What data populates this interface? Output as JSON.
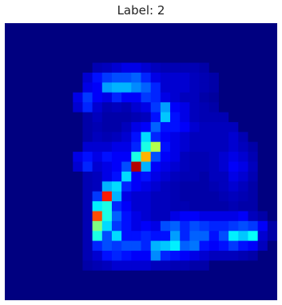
{
  "chart_data": {
    "type": "heatmap",
    "title": "Label: 2",
    "colormap": "jet",
    "value_range": [
      0,
      1
    ],
    "grid": false,
    "axes_visible": false,
    "rows": [
      [
        0.0,
        0.0,
        0.0,
        0.0,
        0.0,
        0.0,
        0.0,
        0.0,
        0.0,
        0.0,
        0.0,
        0.0,
        0.0,
        0.0,
        0.0,
        0.0,
        0.0,
        0.0,
        0.0,
        0.0,
        0.0,
        0.0,
        0.0,
        0.0,
        0.0,
        0.0,
        0.0,
        0.0
      ],
      [
        0.0,
        0.0,
        0.0,
        0.0,
        0.0,
        0.0,
        0.0,
        0.0,
        0.0,
        0.0,
        0.0,
        0.0,
        0.0,
        0.0,
        0.0,
        0.0,
        0.0,
        0.0,
        0.0,
        0.0,
        0.0,
        0.0,
        0.0,
        0.0,
        0.0,
        0.0,
        0.0,
        0.0
      ],
      [
        0.0,
        0.0,
        0.0,
        0.0,
        0.0,
        0.0,
        0.0,
        0.0,
        0.0,
        0.0,
        0.0,
        0.0,
        0.0,
        0.0,
        0.0,
        0.0,
        0.0,
        0.0,
        0.0,
        0.0,
        0.0,
        0.0,
        0.0,
        0.0,
        0.0,
        0.0,
        0.0,
        0.0
      ],
      [
        0.0,
        0.0,
        0.0,
        0.0,
        0.0,
        0.0,
        0.0,
        0.0,
        0.0,
        0.0,
        0.0,
        0.0,
        0.0,
        0.0,
        0.0,
        0.0,
        0.0,
        0.0,
        0.0,
        0.0,
        0.0,
        0.0,
        0.0,
        0.0,
        0.0,
        0.0,
        0.0,
        0.0
      ],
      [
        0.0,
        0.0,
        0.0,
        0.0,
        0.0,
        0.0,
        0.0,
        0.0,
        0.0,
        0.05,
        0.06,
        0.08,
        0.1,
        0.1,
        0.08,
        0.06,
        0.05,
        0.05,
        0.05,
        0.05,
        0.04,
        0.0,
        0.0,
        0.0,
        0.0,
        0.0,
        0.0,
        0.0
      ],
      [
        0.0,
        0.0,
        0.0,
        0.0,
        0.0,
        0.0,
        0.0,
        0.0,
        0.08,
        0.14,
        0.18,
        0.2,
        0.2,
        0.22,
        0.16,
        0.1,
        0.08,
        0.08,
        0.08,
        0.06,
        0.05,
        0.04,
        0.0,
        0.0,
        0.0,
        0.0,
        0.0,
        0.0
      ],
      [
        0.0,
        0.0,
        0.0,
        0.0,
        0.0,
        0.0,
        0.0,
        0.0,
        0.1,
        0.12,
        0.28,
        0.3,
        0.3,
        0.26,
        0.22,
        0.16,
        0.08,
        0.08,
        0.08,
        0.06,
        0.05,
        0.04,
        0.0,
        0.0,
        0.0,
        0.0,
        0.0,
        0.0
      ],
      [
        0.0,
        0.0,
        0.0,
        0.0,
        0.0,
        0.0,
        0.0,
        0.1,
        0.18,
        0.12,
        0.1,
        0.16,
        0.12,
        0.12,
        0.18,
        0.16,
        0.1,
        0.08,
        0.06,
        0.06,
        0.04,
        0.03,
        0.0,
        0.0,
        0.0,
        0.0,
        0.0,
        0.0
      ],
      [
        0.0,
        0.0,
        0.0,
        0.0,
        0.0,
        0.0,
        0.0,
        0.08,
        0.16,
        0.08,
        0.05,
        0.06,
        0.05,
        0.08,
        0.1,
        0.18,
        0.28,
        0.12,
        0.1,
        0.06,
        0.05,
        0.04,
        0.0,
        0.0,
        0.0,
        0.0,
        0.0,
        0.0
      ],
      [
        0.0,
        0.0,
        0.0,
        0.0,
        0.0,
        0.0,
        0.0,
        0.0,
        0.04,
        0.06,
        0.04,
        0.04,
        0.04,
        0.05,
        0.06,
        0.14,
        0.32,
        0.14,
        0.1,
        0.06,
        0.05,
        0.05,
        0.05,
        0.0,
        0.0,
        0.0,
        0.0,
        0.0
      ],
      [
        0.0,
        0.0,
        0.0,
        0.0,
        0.0,
        0.0,
        0.0,
        0.0,
        0.04,
        0.05,
        0.04,
        0.04,
        0.06,
        0.1,
        0.12,
        0.22,
        0.14,
        0.14,
        0.12,
        0.08,
        0.06,
        0.06,
        0.06,
        0.06,
        0.0,
        0.0,
        0.0,
        0.0
      ],
      [
        0.0,
        0.0,
        0.0,
        0.0,
        0.0,
        0.0,
        0.0,
        0.0,
        0.04,
        0.06,
        0.05,
        0.06,
        0.08,
        0.14,
        0.34,
        0.16,
        0.12,
        0.1,
        0.08,
        0.06,
        0.06,
        0.06,
        0.06,
        0.08,
        0.05,
        0.0,
        0.0,
        0.0
      ],
      [
        0.0,
        0.0,
        0.0,
        0.0,
        0.0,
        0.0,
        0.0,
        0.0,
        0.08,
        0.08,
        0.08,
        0.1,
        0.1,
        0.16,
        0.4,
        0.55,
        0.14,
        0.1,
        0.08,
        0.06,
        0.06,
        0.06,
        0.06,
        0.08,
        0.06,
        0.04,
        0.0,
        0.0
      ],
      [
        0.0,
        0.0,
        0.0,
        0.0,
        0.0,
        0.0,
        0.0,
        0.1,
        0.14,
        0.1,
        0.14,
        0.12,
        0.12,
        0.4,
        0.7,
        0.2,
        0.12,
        0.1,
        0.06,
        0.05,
        0.05,
        0.06,
        0.08,
        0.1,
        0.08,
        0.05,
        0.0,
        0.0
      ],
      [
        0.0,
        0.0,
        0.0,
        0.0,
        0.0,
        0.0,
        0.0,
        0.08,
        0.16,
        0.08,
        0.1,
        0.12,
        0.2,
        0.95,
        0.3,
        0.12,
        0.1,
        0.08,
        0.06,
        0.05,
        0.05,
        0.06,
        0.08,
        0.12,
        0.1,
        0.06,
        0.0,
        0.0
      ],
      [
        0.0,
        0.0,
        0.0,
        0.0,
        0.0,
        0.0,
        0.0,
        0.0,
        0.05,
        0.06,
        0.1,
        0.14,
        0.34,
        0.12,
        0.14,
        0.1,
        0.08,
        0.06,
        0.05,
        0.05,
        0.04,
        0.06,
        0.06,
        0.1,
        0.08,
        0.05,
        0.0,
        0.0
      ],
      [
        0.0,
        0.0,
        0.0,
        0.0,
        0.0,
        0.0,
        0.0,
        0.0,
        0.05,
        0.06,
        0.3,
        0.34,
        0.16,
        0.12,
        0.1,
        0.08,
        0.06,
        0.05,
        0.04,
        0.04,
        0.04,
        0.05,
        0.06,
        0.08,
        0.06,
        0.04,
        0.0,
        0.0
      ],
      [
        0.0,
        0.0,
        0.0,
        0.0,
        0.0,
        0.0,
        0.0,
        0.0,
        0.05,
        0.18,
        0.85,
        0.3,
        0.1,
        0.08,
        0.08,
        0.06,
        0.06,
        0.05,
        0.04,
        0.04,
        0.04,
        0.04,
        0.05,
        0.06,
        0.05,
        0.04,
        0.0,
        0.0
      ],
      [
        0.0,
        0.0,
        0.0,
        0.0,
        0.0,
        0.0,
        0.0,
        0.0,
        0.05,
        0.36,
        0.4,
        0.16,
        0.12,
        0.08,
        0.08,
        0.06,
        0.06,
        0.05,
        0.05,
        0.04,
        0.04,
        0.04,
        0.04,
        0.05,
        0.04,
        0.04,
        0.0,
        0.0
      ],
      [
        0.0,
        0.0,
        0.0,
        0.0,
        0.0,
        0.0,
        0.0,
        0.0,
        0.05,
        0.8,
        0.4,
        0.22,
        0.14,
        0.1,
        0.08,
        0.06,
        0.06,
        0.1,
        0.12,
        0.12,
        0.1,
        0.1,
        0.1,
        0.1,
        0.12,
        0.06,
        0.04,
        0.0
      ],
      [
        0.0,
        0.0,
        0.0,
        0.0,
        0.0,
        0.0,
        0.0,
        0.0,
        0.05,
        0.5,
        0.34,
        0.18,
        0.14,
        0.1,
        0.12,
        0.1,
        0.2,
        0.22,
        0.16,
        0.2,
        0.18,
        0.16,
        0.16,
        0.18,
        0.2,
        0.18,
        0.12,
        0.04
      ],
      [
        0.0,
        0.0,
        0.0,
        0.0,
        0.0,
        0.0,
        0.0,
        0.0,
        0.05,
        0.4,
        0.2,
        0.34,
        0.14,
        0.14,
        0.16,
        0.14,
        0.14,
        0.28,
        0.16,
        0.22,
        0.22,
        0.14,
        0.2,
        0.36,
        0.32,
        0.38,
        0.08,
        0.04
      ],
      [
        0.0,
        0.0,
        0.0,
        0.0,
        0.0,
        0.0,
        0.0,
        0.0,
        0.05,
        0.16,
        0.2,
        0.18,
        0.2,
        0.2,
        0.16,
        0.3,
        0.32,
        0.36,
        0.22,
        0.24,
        0.14,
        0.12,
        0.14,
        0.18,
        0.14,
        0.12,
        0.06,
        0.0
      ],
      [
        0.0,
        0.0,
        0.0,
        0.0,
        0.0,
        0.0,
        0.0,
        0.0,
        0.05,
        0.08,
        0.14,
        0.16,
        0.14,
        0.12,
        0.12,
        0.26,
        0.16,
        0.14,
        0.12,
        0.1,
        0.08,
        0.06,
        0.06,
        0.06,
        0.05,
        0.04,
        0.0,
        0.0
      ],
      [
        0.0,
        0.0,
        0.0,
        0.0,
        0.0,
        0.0,
        0.0,
        0.0,
        0.04,
        0.05,
        0.06,
        0.08,
        0.08,
        0.08,
        0.08,
        0.06,
        0.06,
        0.05,
        0.05,
        0.04,
        0.04,
        0.0,
        0.0,
        0.0,
        0.0,
        0.0,
        0.0,
        0.0
      ],
      [
        0.0,
        0.0,
        0.0,
        0.0,
        0.0,
        0.0,
        0.0,
        0.0,
        0.0,
        0.0,
        0.0,
        0.0,
        0.0,
        0.0,
        0.0,
        0.0,
        0.0,
        0.0,
        0.0,
        0.0,
        0.0,
        0.0,
        0.0,
        0.0,
        0.0,
        0.0,
        0.0,
        0.0
      ],
      [
        0.0,
        0.0,
        0.0,
        0.0,
        0.0,
        0.0,
        0.0,
        0.0,
        0.0,
        0.0,
        0.0,
        0.0,
        0.0,
        0.0,
        0.0,
        0.0,
        0.0,
        0.0,
        0.0,
        0.0,
        0.0,
        0.0,
        0.0,
        0.0,
        0.0,
        0.0,
        0.0,
        0.0
      ],
      [
        0.0,
        0.0,
        0.0,
        0.0,
        0.0,
        0.0,
        0.0,
        0.0,
        0.0,
        0.0,
        0.0,
        0.0,
        0.0,
        0.0,
        0.0,
        0.0,
        0.0,
        0.0,
        0.0,
        0.0,
        0.0,
        0.0,
        0.0,
        0.0,
        0.0,
        0.0,
        0.0,
        0.0
      ]
    ]
  }
}
